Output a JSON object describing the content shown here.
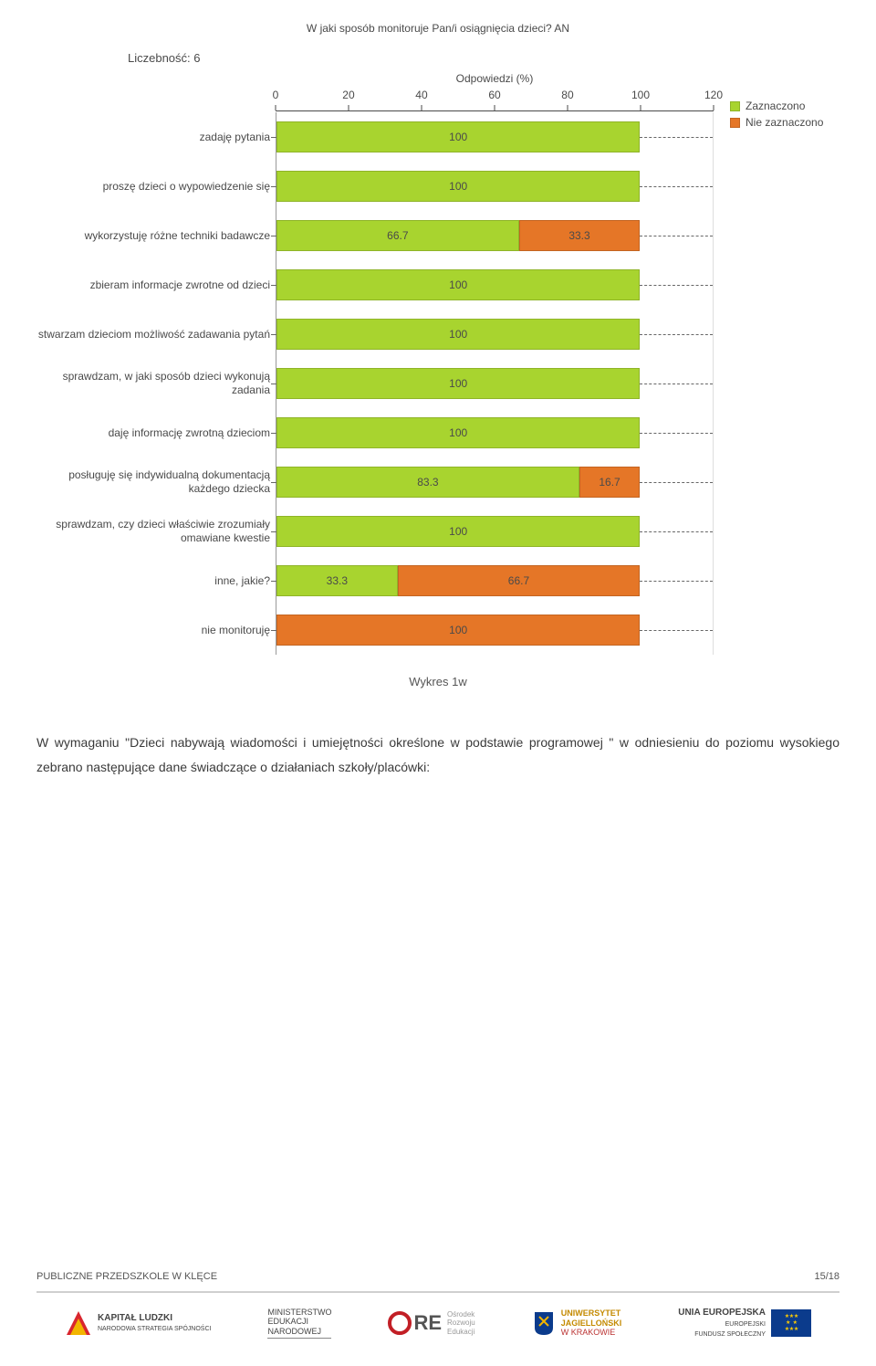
{
  "chart": {
    "title": "W jaki sposób monitoruje Pan/i osiągnięcia dzieci?  AN",
    "count_label": "Liczebność: 6",
    "axis_title": "Odpowiedzi (%)",
    "x_max": 120,
    "x_ticks": [
      0,
      20,
      40,
      60,
      80,
      100,
      120
    ],
    "categories": [
      {
        "label": "zadaję pytania",
        "segments": [
          {
            "value": 100,
            "color": "#a8d42f"
          }
        ]
      },
      {
        "label": "proszę dzieci o wypowiedzenie się",
        "segments": [
          {
            "value": 100,
            "color": "#a8d42f"
          }
        ]
      },
      {
        "label": "wykorzystuję różne techniki badawcze",
        "segments": [
          {
            "value": 66.7,
            "color": "#a8d42f"
          },
          {
            "value": 33.3,
            "color": "#e57627"
          }
        ]
      },
      {
        "label": "zbieram informacje zwrotne od dzieci",
        "segments": [
          {
            "value": 100,
            "color": "#a8d42f"
          }
        ]
      },
      {
        "label": "stwarzam dzieciom możliwość zadawania pytań",
        "segments": [
          {
            "value": 100,
            "color": "#a8d42f"
          }
        ]
      },
      {
        "label": "sprawdzam, w jaki sposób dzieci wykonują zadania",
        "segments": [
          {
            "value": 100,
            "color": "#a8d42f"
          }
        ]
      },
      {
        "label": "daję informację zwrotną dzieciom",
        "segments": [
          {
            "value": 100,
            "color": "#a8d42f"
          }
        ]
      },
      {
        "label": "posługuję się indywidualną dokumentacją każdego dziecka",
        "segments": [
          {
            "value": 83.3,
            "color": "#a8d42f"
          },
          {
            "value": 16.7,
            "color": "#e57627"
          }
        ]
      },
      {
        "label": "sprawdzam, czy dzieci właściwie zrozumiały omawiane kwestie",
        "segments": [
          {
            "value": 100,
            "color": "#a8d42f"
          }
        ]
      },
      {
        "label": "inne, jakie?",
        "segments": [
          {
            "value": 33.3,
            "color": "#a8d42f"
          },
          {
            "value": 66.7,
            "color": "#e57627"
          }
        ]
      },
      {
        "label": "nie monitoruję",
        "segments": [
          {
            "value": 100,
            "color": "#e57627"
          }
        ]
      }
    ],
    "legend": [
      {
        "label": "Zaznaczono",
        "color": "#a8d42f"
      },
      {
        "label": "Nie zaznaczono",
        "color": "#e57627"
      }
    ]
  },
  "caption": "Wykres 1w",
  "body": "W wymaganiu \"Dzieci nabywają wiadomości i umiejętności określone w podstawie programowej \" w odniesieniu do poziomu wysokiego zebrano następujące dane świadczące o działaniach szkoły/placówki:",
  "footer": {
    "left": "PUBLICZNE PRZEDSZKOLE W KLĘCE",
    "right": "15/18",
    "logos": {
      "kapital": {
        "line1": "KAPITAŁ LUDZKI",
        "line2": "NARODOWA STRATEGIA SPÓJNOŚCI"
      },
      "men": {
        "line1": "MINISTERSTWO",
        "line2": "EDUKACJI",
        "line3": "NARODOWEJ"
      },
      "ore": {
        "brand": "ORE",
        "line1": "Ośrodek",
        "line2": "Rozwoju",
        "line3": "Edukacji"
      },
      "uj": {
        "line1": "UNIWERSYTET",
        "line2": "JAGIELLOŃSKI",
        "line3": "W KRAKOWIE"
      },
      "eu": {
        "line1": "UNIA EUROPEJSKA",
        "line2": "EUROPEJSKI",
        "line3": "FUNDUSZ SPOŁECZNY"
      }
    }
  }
}
